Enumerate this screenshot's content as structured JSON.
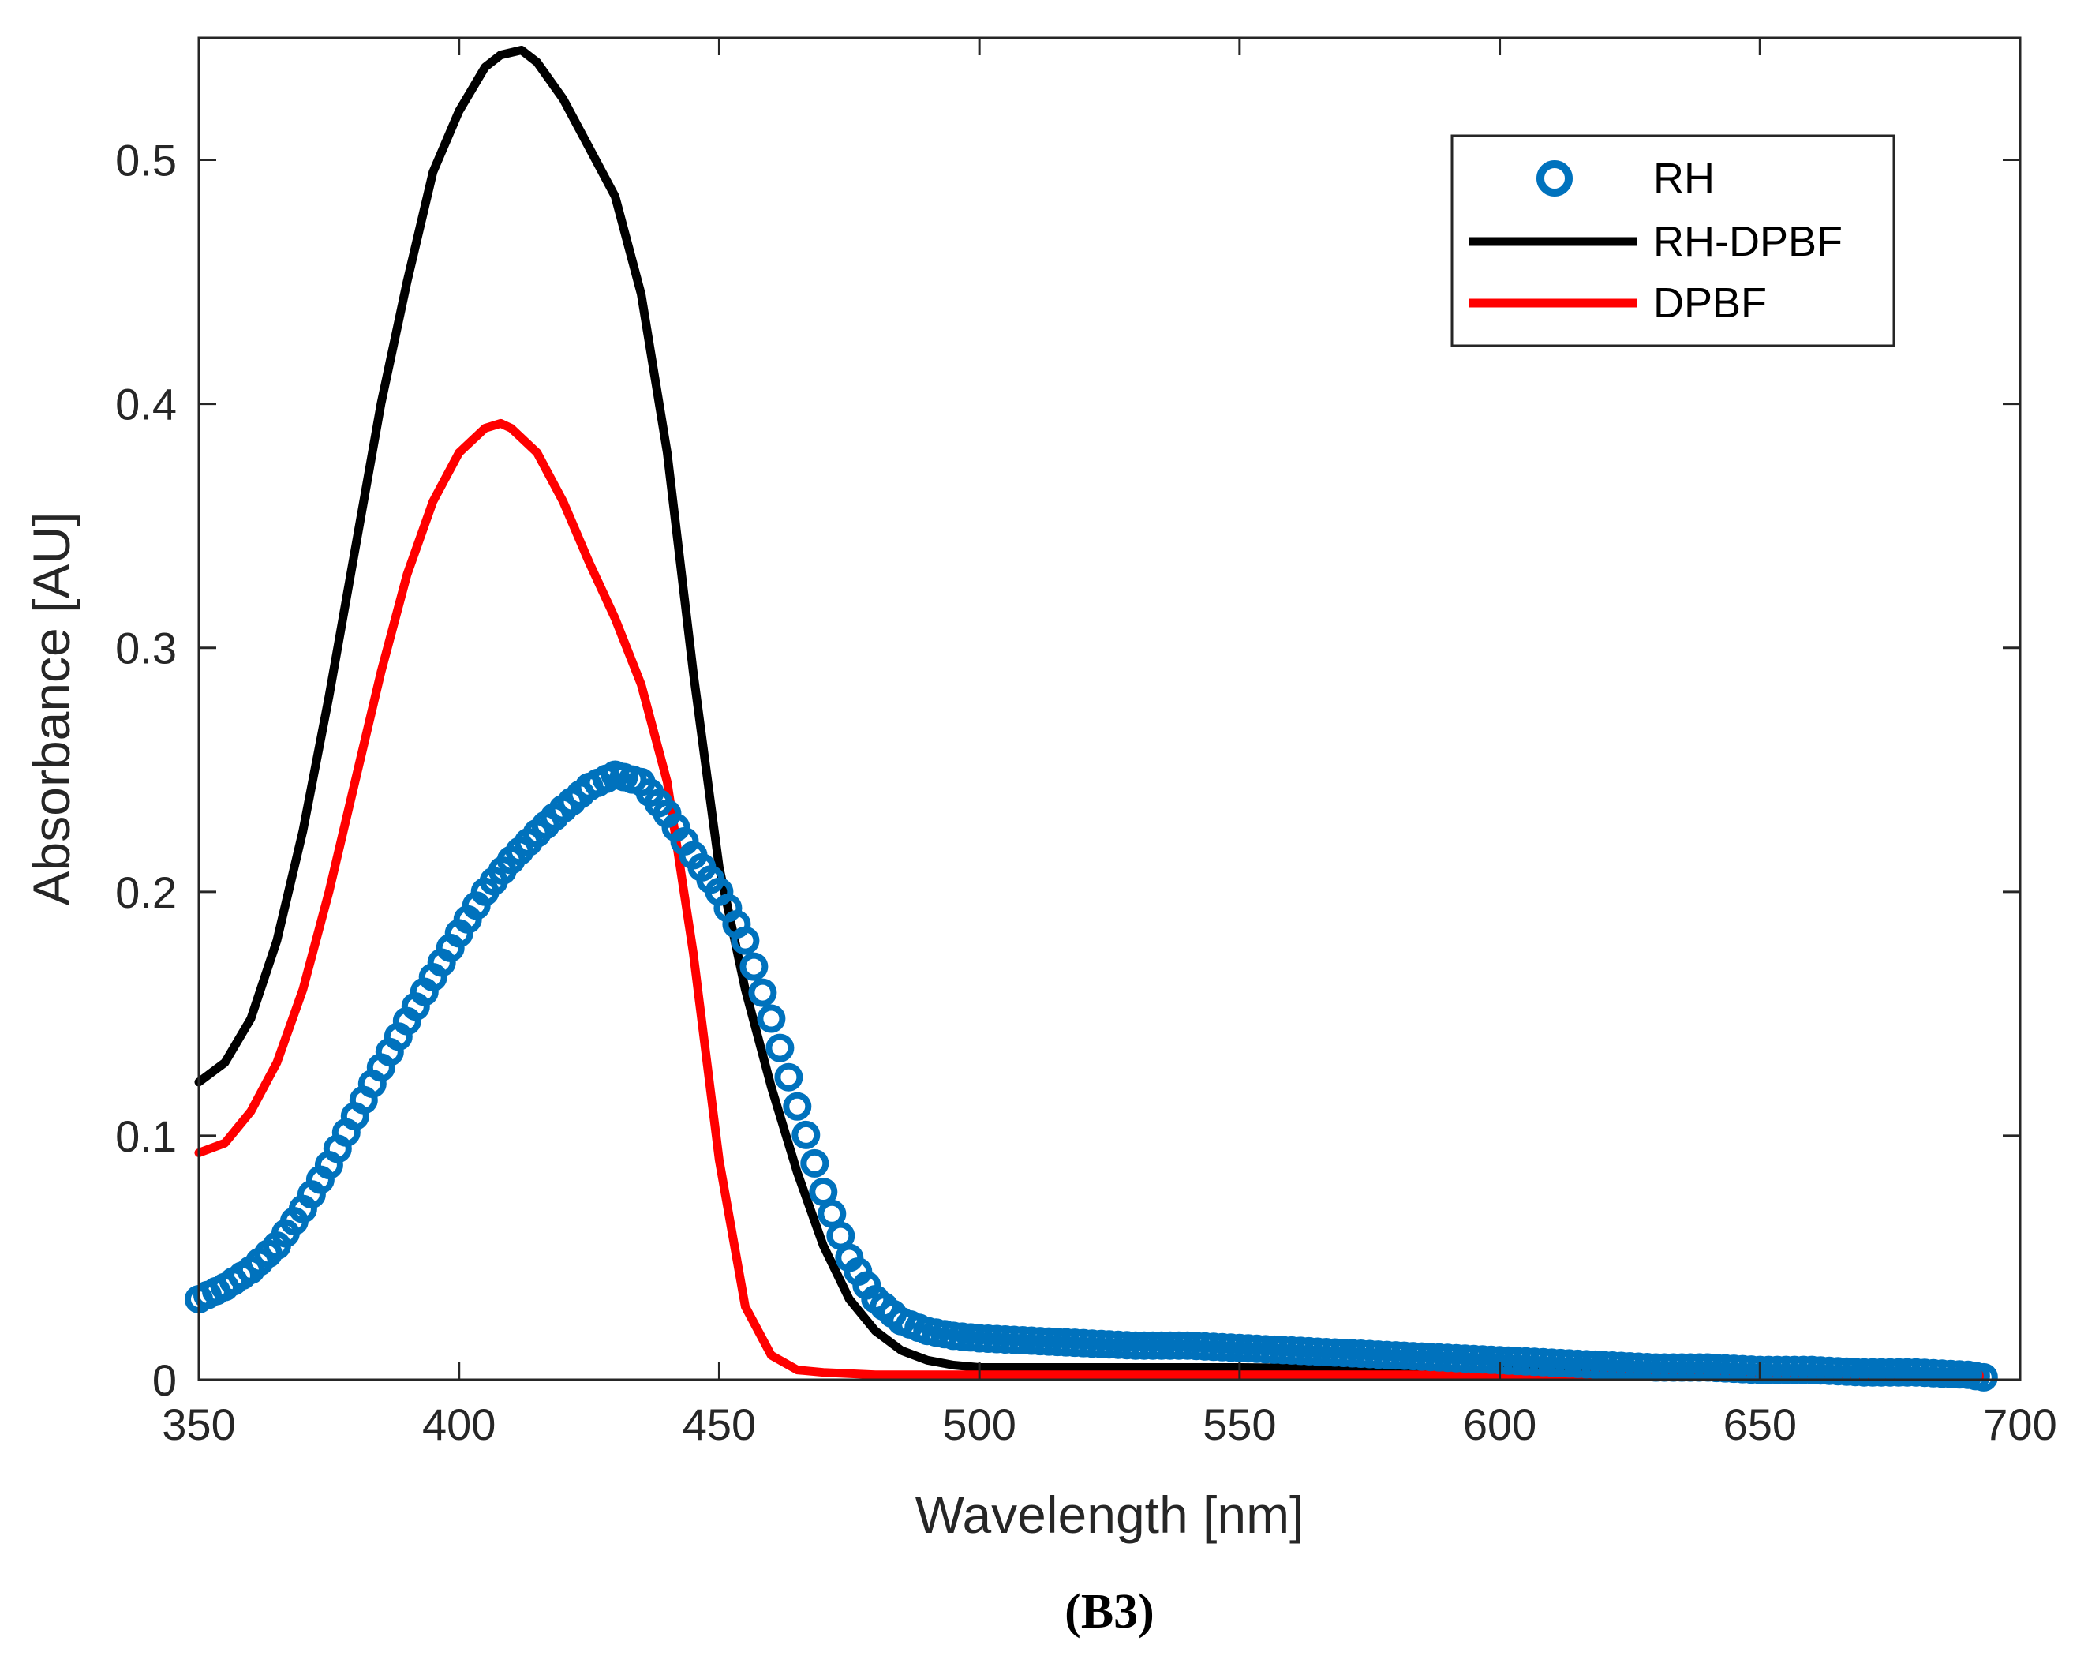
{
  "chart_data": {
    "type": "line",
    "title": "",
    "xlabel": "Wavelength [nm]",
    "ylabel": "Absorbance [AU]",
    "xlim": [
      350,
      700
    ],
    "ylim": [
      0,
      0.55
    ],
    "xticks": [
      350,
      400,
      450,
      500,
      550,
      600,
      650,
      700
    ],
    "yticks": [
      0,
      0.1,
      0.2,
      0.3,
      0.4,
      0.5
    ],
    "xtick_labels": [
      "350",
      "400",
      "450",
      "500",
      "550",
      "600",
      "650",
      "700"
    ],
    "ytick_labels": [
      "0",
      "0.1",
      "0.2",
      "0.3",
      "0.4",
      "0.5"
    ],
    "grid": false,
    "legend_position": "top-right",
    "panel_label": "(B3)",
    "series": [
      {
        "name": "RH",
        "style": "markers",
        "marker": "circle-open",
        "color": "#0072BD",
        "x": [
          350,
          355,
          360,
          365,
          370,
          375,
          380,
          385,
          390,
          395,
          400,
          405,
          410,
          415,
          420,
          425,
          430,
          435,
          440,
          445,
          450,
          455,
          460,
          465,
          470,
          475,
          480,
          485,
          490,
          495,
          500,
          510,
          520,
          530,
          540,
          550,
          560,
          570,
          580,
          590,
          600,
          610,
          620,
          630,
          640,
          650,
          660,
          670,
          680,
          690,
          693
        ],
        "y": [
          0.033,
          0.038,
          0.045,
          0.055,
          0.07,
          0.088,
          0.108,
          0.128,
          0.147,
          0.165,
          0.183,
          0.2,
          0.213,
          0.224,
          0.234,
          0.243,
          0.248,
          0.245,
          0.232,
          0.215,
          0.2,
          0.18,
          0.148,
          0.112,
          0.077,
          0.05,
          0.033,
          0.024,
          0.02,
          0.018,
          0.017,
          0.016,
          0.015,
          0.014,
          0.014,
          0.013,
          0.012,
          0.011,
          0.01,
          0.009,
          0.008,
          0.007,
          0.006,
          0.005,
          0.005,
          0.004,
          0.004,
          0.003,
          0.003,
          0.002,
          0.001
        ]
      },
      {
        "name": "RH-DPBF",
        "style": "line",
        "color": "#000000",
        "x": [
          350,
          355,
          360,
          365,
          370,
          375,
          380,
          385,
          390,
          395,
          400,
          405,
          408,
          412,
          415,
          420,
          425,
          430,
          435,
          440,
          445,
          450,
          455,
          460,
          465,
          470,
          475,
          480,
          485,
          490,
          495,
          500,
          520,
          550,
          600,
          650,
          693
        ],
        "y": [
          0.122,
          0.13,
          0.148,
          0.18,
          0.225,
          0.28,
          0.34,
          0.4,
          0.45,
          0.495,
          0.52,
          0.538,
          0.543,
          0.545,
          0.54,
          0.525,
          0.505,
          0.485,
          0.445,
          0.38,
          0.29,
          0.21,
          0.16,
          0.12,
          0.085,
          0.055,
          0.033,
          0.02,
          0.012,
          0.008,
          0.006,
          0.005,
          0.005,
          0.005,
          0.004,
          0.003,
          0.003
        ]
      },
      {
        "name": "DPBF",
        "style": "line",
        "color": "#FF0000",
        "x": [
          350,
          355,
          360,
          365,
          370,
          375,
          380,
          385,
          390,
          395,
          400,
          405,
          408,
          410,
          415,
          420,
          425,
          430,
          435,
          440,
          445,
          450,
          455,
          460,
          465,
          470,
          480,
          500,
          550,
          600,
          650,
          693
        ],
        "y": [
          0.093,
          0.097,
          0.11,
          0.13,
          0.16,
          0.2,
          0.245,
          0.29,
          0.33,
          0.36,
          0.38,
          0.39,
          0.392,
          0.39,
          0.38,
          0.36,
          0.335,
          0.312,
          0.285,
          0.245,
          0.175,
          0.09,
          0.03,
          0.01,
          0.004,
          0.003,
          0.002,
          0.002,
          0.002,
          0.002,
          0.002,
          0.002
        ]
      }
    ]
  }
}
